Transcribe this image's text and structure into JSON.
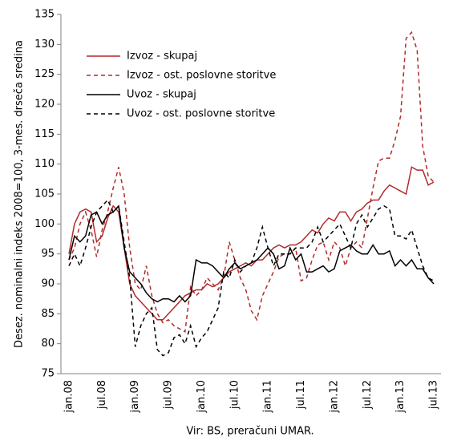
{
  "chart_data": {
    "type": "line",
    "y_label": "Desez. nominalni indeks 2008=100, 3-mes. drseča sredina",
    "source": "Vir: BS, preračuni UMAR.",
    "categories": [
      "jan.08",
      null,
      null,
      null,
      null,
      null,
      "jul.08",
      null,
      null,
      null,
      null,
      null,
      "jan.09",
      null,
      null,
      null,
      null,
      null,
      "jul.09",
      null,
      null,
      null,
      null,
      null,
      "jan.10",
      null,
      null,
      null,
      null,
      null,
      "jul.10",
      null,
      null,
      null,
      null,
      null,
      "jan.11",
      null,
      null,
      null,
      null,
      null,
      "jul.11",
      null,
      null,
      null,
      null,
      null,
      "jan.12",
      null,
      null,
      null,
      null,
      null,
      "jul.12",
      null,
      null,
      null,
      null,
      null,
      "jan.13",
      null,
      null,
      null,
      null,
      null,
      "jul.13"
    ],
    "ylim": [
      75,
      135
    ],
    "yticks": [
      75,
      80,
      85,
      90,
      95,
      100,
      105,
      110,
      115,
      120,
      125,
      130,
      135
    ],
    "grid": false,
    "legend": "upper left",
    "series": [
      {
        "name": "Izvoz - skupaj",
        "color": "#b22a2a",
        "line_style": "solid",
        "values": [
          95,
          100,
          102,
          102.5,
          102,
          97,
          98,
          101,
          103,
          102,
          96,
          90,
          88,
          87,
          86,
          85,
          84,
          84,
          85,
          86,
          87,
          88,
          88.5,
          89,
          89,
          90,
          89.5,
          90,
          91,
          92,
          92.5,
          93,
          93.5,
          93,
          94,
          94,
          95,
          96,
          96.5,
          96,
          96.5,
          96.5,
          97,
          98,
          99,
          98.5,
          100,
          101,
          100.5,
          102,
          102,
          100.5,
          102,
          102.5,
          103.5,
          104,
          104,
          105.5,
          106.5,
          106,
          105.5,
          105,
          109.5,
          109,
          109,
          106.5,
          107
        ]
      },
      {
        "name": "Izvoz - ost. poslovne storitve",
        "color": "#b22a2a",
        "line_style": "dashed",
        "values": [
          94,
          96,
          100,
          102,
          99,
          94.5,
          99,
          102,
          106,
          109.5,
          105,
          96,
          90,
          89,
          93,
          88,
          85,
          83.5,
          84,
          83,
          82.5,
          82,
          89.5,
          88,
          89,
          91,
          90,
          89,
          91,
          97,
          94,
          91,
          89,
          85.5,
          84,
          88,
          90,
          92,
          94.5,
          95,
          95,
          96,
          90.5,
          91,
          94,
          96.5,
          97,
          94,
          97,
          96,
          93,
          96,
          97,
          96,
          101,
          106,
          110.5,
          111,
          111,
          114,
          118,
          131,
          132,
          129,
          113,
          108,
          107
        ]
      },
      {
        "name": "Uvoz - skupaj",
        "color": "#000000",
        "line_style": "solid",
        "values": [
          94,
          98,
          97,
          98,
          101.5,
          102,
          100,
          101.5,
          102,
          103,
          96,
          92,
          91,
          90,
          88.5,
          87.5,
          87,
          87.5,
          87.5,
          87,
          88,
          87,
          88,
          94,
          93.5,
          93.5,
          93,
          92,
          91,
          92.5,
          93.5,
          92.5,
          93,
          93.5,
          94,
          95,
          96,
          95,
          92.5,
          93,
          96,
          94,
          95,
          92,
          92,
          92.5,
          93,
          92,
          92.5,
          95.5,
          96,
          96.5,
          95.5,
          95,
          95,
          96.5,
          95,
          95,
          95.5,
          93,
          94,
          93,
          94,
          92.5,
          92.5,
          91,
          90
        ]
      },
      {
        "name": "Uvoz - ost. poslovne storitve",
        "color": "#000000",
        "line_style": "dashed",
        "values": [
          93,
          95,
          93,
          96,
          99.5,
          102,
          103,
          104,
          102,
          103,
          97,
          91,
          79.5,
          83,
          85,
          86,
          79,
          78,
          78.5,
          81,
          81.5,
          80,
          83,
          79.5,
          81,
          82,
          84,
          86,
          92,
          91,
          94,
          92,
          93,
          93.5,
          96,
          99.5,
          96,
          93,
          95,
          95,
          95,
          96,
          96,
          96,
          97,
          99.5,
          97,
          98,
          99,
          100,
          98,
          96,
          100,
          101.5,
          99.5,
          101,
          102.5,
          103,
          102.5,
          98,
          98,
          97.5,
          99,
          96,
          93,
          91,
          90.5
        ]
      }
    ]
  }
}
